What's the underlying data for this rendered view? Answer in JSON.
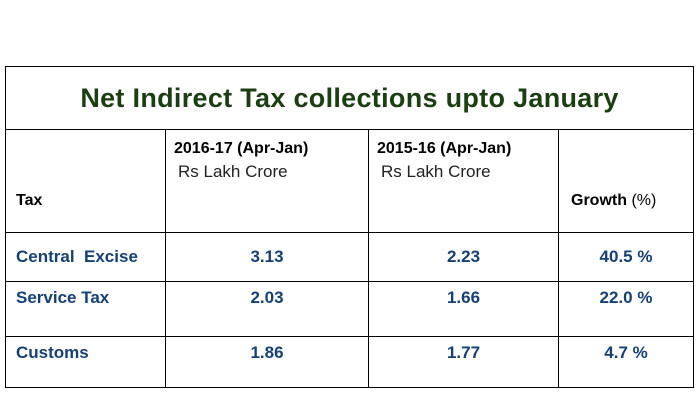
{
  "title": "Net Indirect Tax collections upto January",
  "header": {
    "tax_label": "Tax",
    "period1": "2016-17 (Apr-Jan)",
    "period1_unit": "Rs Lakh Crore",
    "period2": "2015-16 (Apr-Jan)",
    "period2_unit": "Rs Lakh Crore",
    "growth_label": "Growth",
    "growth_unit": " (%)"
  },
  "rows": [
    {
      "tax": "Central  Excise",
      "v2016": "3.13",
      "v2015": "2.23",
      "growth": "40.5 %"
    },
    {
      "tax": "Service Tax",
      "v2016": "2.03",
      "v2015": "1.66",
      "growth": "22.0 %"
    },
    {
      "tax": "Customs",
      "v2016": "1.86",
      "v2015": "1.77",
      "growth": "4.7 %"
    }
  ],
  "colors": {
    "title": "#1a3f10",
    "data_text": "#13407a",
    "border": "#000000"
  }
}
